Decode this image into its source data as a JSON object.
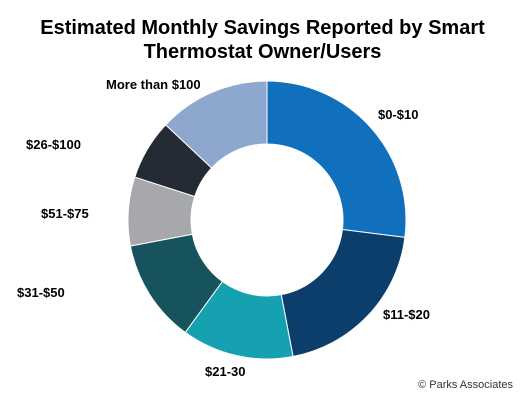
{
  "chart_data": {
    "type": "pie",
    "donut": true,
    "title_lines": [
      "Estimated Monthly Savings Reported by Smart",
      "Thermostat Owner/Users"
    ],
    "categories": [
      "$0-$10",
      "$11-$20",
      "$21-30",
      "$31-$50",
      "$51-$75",
      "$26-$100",
      "More than $100"
    ],
    "values": [
      27,
      20,
      13,
      12,
      8,
      7,
      13
    ],
    "colors": [
      "#1170bd",
      "#0c3e6b",
      "#16a1b1",
      "#16535d",
      "#a6a8ab",
      "#252b35",
      "#8ea7cf"
    ],
    "legend": "labels-outside"
  },
  "source": "© Parks Associates"
}
